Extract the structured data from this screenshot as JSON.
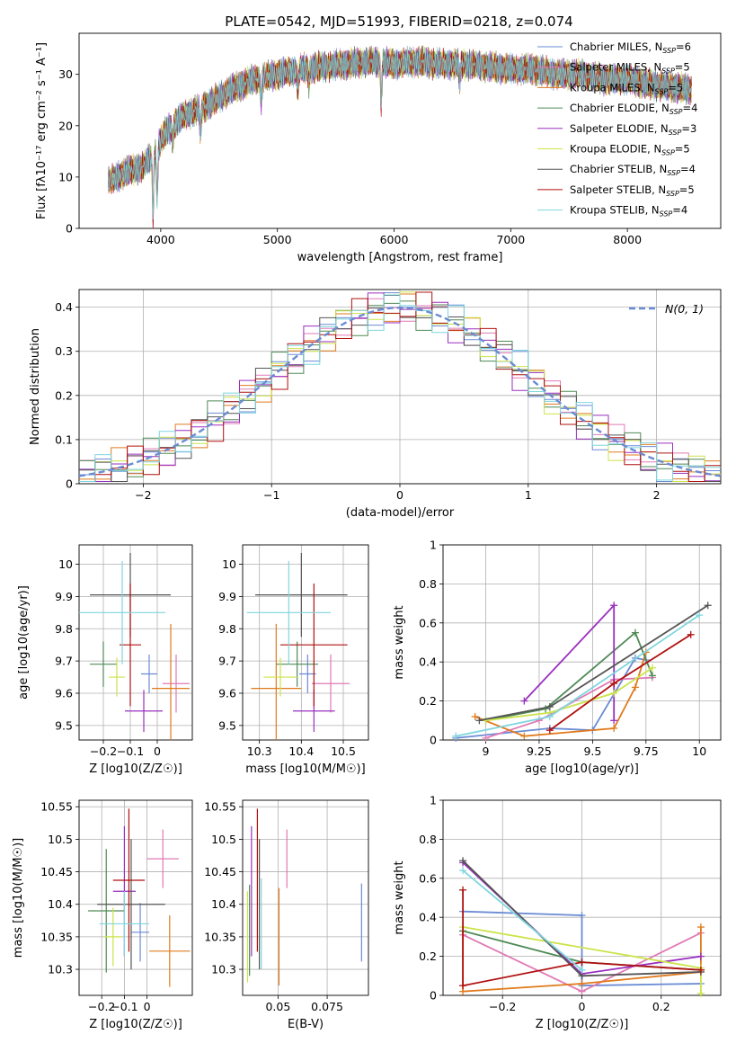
{
  "figure": {
    "title": "PLATE=0542, MJD=51993, FIBERID=0218, z=0.074"
  },
  "chart_data": [
    {
      "id": "spectrum",
      "type": "line",
      "xlabel": "wavelength [Angstrom, rest frame]",
      "ylabel": "Flux [fλ10⁻¹⁷ erg cm⁻² s⁻¹ A⁻¹]",
      "xlim": [
        3300,
        8800
      ],
      "ylim": [
        0,
        38
      ],
      "xticks": [
        4000,
        5000,
        6000,
        7000,
        8000
      ],
      "yticks": [
        0,
        10,
        20,
        30
      ],
      "grid": false,
      "legend_position": "top-right",
      "continuum": [
        [
          3550,
          9
        ],
        [
          3700,
          11
        ],
        [
          3850,
          12
        ],
        [
          3950,
          15
        ],
        [
          4050,
          19
        ],
        [
          4200,
          22
        ],
        [
          4400,
          24
        ],
        [
          4600,
          27
        ],
        [
          4800,
          29
        ],
        [
          5000,
          30
        ],
        [
          5200,
          31
        ],
        [
          5400,
          31.5
        ],
        [
          5600,
          32
        ],
        [
          5800,
          32.5
        ],
        [
          6000,
          32
        ],
        [
          6200,
          32.5
        ],
        [
          6400,
          32
        ],
        [
          6600,
          32
        ],
        [
          6800,
          31.5
        ],
        [
          7000,
          31
        ],
        [
          7200,
          31
        ],
        [
          7400,
          30
        ],
        [
          7600,
          30
        ],
        [
          7800,
          29
        ],
        [
          8000,
          29
        ],
        [
          8200,
          28
        ],
        [
          8400,
          27.5
        ],
        [
          8550,
          27
        ]
      ],
      "absorption_features": [
        [
          3934,
          0
        ],
        [
          3969,
          4
        ],
        [
          4102,
          16
        ],
        [
          4340,
          18
        ],
        [
          4861,
          24
        ],
        [
          5175,
          26
        ],
        [
          5270,
          28
        ],
        [
          5890,
          23
        ],
        [
          6563,
          28
        ]
      ],
      "series": [
        {
          "name": "Chabrier MILES, N_SSP=6",
          "color": "#6a8bd4"
        },
        {
          "name": "Salpeter MILES, N_SSP=5",
          "color": "#e07ab5"
        },
        {
          "name": "Kroupa MILES, N_SSP=5",
          "color": "#e07b1e"
        },
        {
          "name": "Chabrier ELODIE, N_SSP=4",
          "color": "#4f8a55"
        },
        {
          "name": "Salpeter ELODIE, N_SSP=3",
          "color": "#9a2fbf"
        },
        {
          "name": "Kroupa ELODIE, N_SSP=5",
          "color": "#cce34a"
        },
        {
          "name": "Chabrier STELIB, N_SSP=4",
          "color": "#555555"
        },
        {
          "name": "Salpeter STELIB, N_SSP=5",
          "color": "#b01010"
        },
        {
          "name": "Kroupa STELIB, N_SSP=4",
          "color": "#7fd6de"
        }
      ],
      "legend_labels": [
        {
          "main": "Chabrier MILES, N",
          "sub": "SSP",
          "tail": "=6"
        },
        {
          "main": "Salpeter MILES, N",
          "sub": "SSP",
          "tail": "=5"
        },
        {
          "main": "Kroupa MILES, N",
          "sub": "SSP",
          "tail": "=5"
        },
        {
          "main": "Chabrier ELODIE, N",
          "sub": "SSP",
          "tail": "=4"
        },
        {
          "main": "Salpeter ELODIE, N",
          "sub": "SSP",
          "tail": "=3"
        },
        {
          "main": "Kroupa ELODIE, N",
          "sub": "SSP",
          "tail": "=5"
        },
        {
          "main": "Chabrier STELIB, N",
          "sub": "SSP",
          "tail": "=4"
        },
        {
          "main": "Salpeter STELIB, N",
          "sub": "SSP",
          "tail": "=5"
        },
        {
          "main": "Kroupa STELIB, N",
          "sub": "SSP",
          "tail": "=4"
        }
      ]
    },
    {
      "id": "residuals",
      "type": "histogram",
      "xlabel": "(data-model)/error",
      "ylabel": "Normed distribution",
      "xlim": [
        -2.5,
        2.5
      ],
      "ylim": [
        0,
        0.44
      ],
      "xticks": [
        -2,
        -1,
        0,
        1,
        2
      ],
      "yticks": [
        0.0,
        0.1,
        0.2,
        0.3,
        0.4
      ],
      "grid": true,
      "legend_position": "top-right",
      "reference_curve": {
        "name": "N(0, 1)",
        "color": "#6a8bd4",
        "mean": 0,
        "sigma": 1
      },
      "bins": 40
    },
    {
      "id": "age_vs_Z",
      "type": "errorbar",
      "xlabel": "Z [log10(Z/Z☉)]",
      "ylabel": "age [log10(age/yr)]",
      "xlim": [
        -0.29,
        0.13
      ],
      "ylim": [
        9.455,
        10.06
      ],
      "xticks": [
        -0.2,
        -0.1,
        0.0
      ],
      "yticks": [
        9.5,
        9.6,
        9.7,
        9.8,
        9.9,
        10.0
      ],
      "grid": true,
      "points": [
        {
          "color": "#6a8bd4",
          "x": -0.03,
          "xerr": 0.03,
          "y": 9.66,
          "yerr": 0.06
        },
        {
          "color": "#e07ab5",
          "x": 0.07,
          "xerr": 0.05,
          "y": 9.63,
          "yerr": 0.09
        },
        {
          "color": "#e07b1e",
          "x": 0.05,
          "xerr": 0.07,
          "y": 9.615,
          "yerr": 0.2
        },
        {
          "color": "#4f8a55",
          "x": -0.2,
          "xerr": 0.05,
          "y": 9.69,
          "yerr": 0.07
        },
        {
          "color": "#9a2fbf",
          "x": -0.05,
          "xerr": 0.07,
          "y": 9.545,
          "yerr": 0.065
        },
        {
          "color": "#cce34a",
          "x": -0.15,
          "xerr": 0.03,
          "y": 9.65,
          "yerr": 0.06
        },
        {
          "color": "#555555",
          "x": -0.1,
          "xerr": 0.15,
          "y": 9.905,
          "yerr": 0.13
        },
        {
          "color": "#b01010",
          "x": -0.1,
          "xerr": 0.04,
          "y": 9.75,
          "yerr": 0.19
        },
        {
          "color": "#7fd6de",
          "x": -0.13,
          "xerr": 0.16,
          "y": 9.85,
          "yerr": 0.16
        }
      ]
    },
    {
      "id": "age_vs_mass",
      "type": "errorbar",
      "xlabel": "mass [log10(M/M☉)]",
      "ylabel": "",
      "xlim": [
        10.26,
        10.56
      ],
      "ylim": [
        9.455,
        10.06
      ],
      "xticks": [
        10.3,
        10.4,
        10.5
      ],
      "yticks": [
        9.5,
        9.6,
        9.7,
        9.8,
        9.9,
        10.0
      ],
      "grid": true,
      "points": [
        {
          "color": "#6a8bd4",
          "x": 10.415,
          "xerr": 0.02,
          "y": 9.66,
          "yerr": 0.06
        },
        {
          "color": "#e07ab5",
          "x": 10.47,
          "xerr": 0.045,
          "y": 9.63,
          "yerr": 0.09
        },
        {
          "color": "#e07b1e",
          "x": 10.34,
          "xerr": 0.06,
          "y": 9.615,
          "yerr": 0.2
        },
        {
          "color": "#4f8a55",
          "x": 10.39,
          "xerr": 0.05,
          "y": 9.69,
          "yerr": 0.07
        },
        {
          "color": "#9a2fbf",
          "x": 10.43,
          "xerr": 0.05,
          "y": 9.545,
          "yerr": 0.065
        },
        {
          "color": "#cce34a",
          "x": 10.35,
          "xerr": 0.04,
          "y": 9.65,
          "yerr": 0.06
        },
        {
          "color": "#555555",
          "x": 10.4,
          "xerr": 0.11,
          "y": 9.905,
          "yerr": 0.13
        },
        {
          "color": "#b01010",
          "x": 10.43,
          "xerr": 0.08,
          "y": 9.75,
          "yerr": 0.19
        },
        {
          "color": "#7fd6de",
          "x": 10.37,
          "xerr": 0.1,
          "y": 9.85,
          "yerr": 0.16
        }
      ]
    },
    {
      "id": "weight_vs_age",
      "type": "line",
      "xlabel": "age [log10(age/yr)]",
      "ylabel": "mass weight",
      "xlim": [
        8.8,
        10.1
      ],
      "ylim": [
        0,
        1
      ],
      "xticks": [
        9.0,
        9.25,
        9.5,
        9.75,
        10.0
      ],
      "yticks": [
        0.0,
        0.2,
        0.4,
        0.6,
        0.8,
        1.0
      ],
      "grid": true,
      "series": [
        {
          "color": "#6a8bd4",
          "x": [
            8.86,
            9.3,
            9.5,
            9.7,
            9.75
          ],
          "y": [
            0.01,
            0.06,
            0.05,
            0.42,
            0.41
          ]
        },
        {
          "color": "#e07ab5",
          "x": [
            9.0,
            9.25,
            9.6,
            9.78
          ],
          "y": [
            0.01,
            0.1,
            0.31,
            0.32
          ]
        },
        {
          "color": "#e07b1e",
          "x": [
            8.95,
            9.18,
            9.6,
            9.7,
            9.75
          ],
          "y": [
            0.12,
            0.02,
            0.06,
            0.27,
            0.45
          ]
        },
        {
          "color": "#4f8a55",
          "x": [
            9.0,
            9.28,
            9.7,
            9.78
          ],
          "y": [
            0.1,
            0.16,
            0.55,
            0.33
          ]
        },
        {
          "color": "#9a2fbf",
          "x": [
            9.18,
            9.6,
            9.6
          ],
          "y": [
            0.2,
            0.69,
            0.1
          ]
        },
        {
          "color": "#cce34a",
          "x": [
            9.0,
            9.3,
            9.6,
            9.78
          ],
          "y": [
            0.1,
            0.14,
            0.24,
            0.37
          ]
        },
        {
          "color": "#555555",
          "x": [
            8.97,
            9.3,
            10.04
          ],
          "y": [
            0.1,
            0.17,
            0.69
          ]
        },
        {
          "color": "#b01010",
          "x": [
            9.3,
            9.6,
            9.96
          ],
          "y": [
            0.05,
            0.29,
            0.54
          ]
        },
        {
          "color": "#7fd6de",
          "x": [
            8.86,
            9.3,
            10.0
          ],
          "y": [
            0.02,
            0.12,
            0.64
          ]
        }
      ]
    },
    {
      "id": "mass_vs_Z",
      "type": "errorbar",
      "xlabel": "Z [log10(Z/Z☉)]",
      "ylabel": "mass [log10(M/M☉)]",
      "xlim": [
        -0.3,
        0.2
      ],
      "ylim": [
        10.26,
        10.56
      ],
      "xticks": [
        -0.2,
        -0.1,
        0.0
      ],
      "yticks": [
        10.3,
        10.35,
        10.4,
        10.45,
        10.5,
        10.55
      ],
      "grid": true,
      "points": [
        {
          "color": "#6a8bd4",
          "x": -0.03,
          "xerr": 0.04,
          "y": 10.357,
          "yerr": 0.045
        },
        {
          "color": "#e07ab5",
          "x": 0.07,
          "xerr": 0.07,
          "y": 10.47,
          "yerr": 0.045
        },
        {
          "color": "#e07b1e",
          "x": 0.1,
          "xerr": 0.09,
          "y": 10.328,
          "yerr": 0.055
        },
        {
          "color": "#4f8a55",
          "x": -0.18,
          "xerr": 0.08,
          "y": 10.39,
          "yerr": 0.095
        },
        {
          "color": "#9a2fbf",
          "x": -0.1,
          "xerr": 0.05,
          "y": 10.42,
          "yerr": 0.1
        },
        {
          "color": "#cce34a",
          "x": -0.15,
          "xerr": 0.04,
          "y": 10.35,
          "yerr": 0.045
        },
        {
          "color": "#555555",
          "x": -0.07,
          "xerr": 0.15,
          "y": 10.4,
          "yerr": 0.1
        },
        {
          "color": "#b01010",
          "x": -0.08,
          "xerr": 0.07,
          "y": 10.437,
          "yerr": 0.11
        },
        {
          "color": "#7fd6de",
          "x": -0.1,
          "xerr": 0.11,
          "y": 10.37,
          "yerr": 0.05
        }
      ]
    },
    {
      "id": "mass_vs_EBV",
      "type": "errorbar",
      "xlabel": "E(B-V)",
      "ylabel": "",
      "xlim": [
        0.032,
        0.096
      ],
      "ylim": [
        10.26,
        10.56
      ],
      "xticks": [
        0.05,
        0.075
      ],
      "yticks": [
        10.3,
        10.35,
        10.4,
        10.45,
        10.5,
        10.55
      ],
      "grid": true,
      "points": [
        {
          "color": "#6a8bd4",
          "x": 0.0925,
          "xerr": 0.0,
          "y": 10.372,
          "yerr": 0.06
        },
        {
          "color": "#e07ab5",
          "x": 0.0545,
          "xerr": 0.0,
          "y": 10.47,
          "yerr": 0.045
        },
        {
          "color": "#e07b1e",
          "x": 0.0505,
          "xerr": 0.0,
          "y": 10.35,
          "yerr": 0.075
        },
        {
          "color": "#4f8a55",
          "x": 0.0355,
          "xerr": 0.0,
          "y": 10.36,
          "yerr": 0.07
        },
        {
          "color": "#9a2fbf",
          "x": 0.0365,
          "xerr": 0.0,
          "y": 10.42,
          "yerr": 0.1
        },
        {
          "color": "#cce34a",
          "x": 0.0345,
          "xerr": 0.0,
          "y": 10.35,
          "yerr": 0.07
        },
        {
          "color": "#555555",
          "x": 0.0405,
          "xerr": 0.0,
          "y": 10.4,
          "yerr": 0.1
        },
        {
          "color": "#b01010",
          "x": 0.0395,
          "xerr": 0.0,
          "y": 10.437,
          "yerr": 0.11
        },
        {
          "color": "#7fd6de",
          "x": 0.0415,
          "xerr": 0.0,
          "y": 10.37,
          "yerr": 0.07
        }
      ]
    },
    {
      "id": "weight_vs_Z",
      "type": "line",
      "xlabel": "Z [log10(Z/Z☉)]",
      "ylabel": "mass weight",
      "xlim": [
        -0.35,
        0.35
      ],
      "ylim": [
        0,
        1
      ],
      "xticks": [
        -0.2,
        0.0,
        0.2
      ],
      "yticks": [
        0.0,
        0.2,
        0.4,
        0.6,
        0.8,
        1.0
      ],
      "grid": true,
      "series": [
        {
          "color": "#6a8bd4",
          "x": [
            -0.3,
            0.0,
            0.0,
            0.3
          ],
          "y": [
            0.43,
            0.41,
            0.05,
            0.06
          ]
        },
        {
          "color": "#e07ab5",
          "x": [
            -0.3,
            0.0,
            0.3
          ],
          "y": [
            0.31,
            0.02,
            0.32
          ]
        },
        {
          "color": "#e07b1e",
          "x": [
            -0.3,
            -0.3,
            0.0,
            0.3,
            0.3
          ],
          "y": [
            0.33,
            0.02,
            0.06,
            0.12,
            0.35
          ]
        },
        {
          "color": "#4f8a55",
          "x": [
            -0.3,
            0.0,
            0.3
          ],
          "y": [
            0.33,
            0.17,
            0.13
          ]
        },
        {
          "color": "#9a2fbf",
          "x": [
            -0.3,
            0.0,
            0.3
          ],
          "y": [
            0.68,
            0.11,
            0.2
          ]
        },
        {
          "color": "#cce34a",
          "x": [
            -0.3,
            0.3,
            0.3
          ],
          "y": [
            0.35,
            0.14,
            0.01
          ]
        },
        {
          "color": "#555555",
          "x": [
            -0.3,
            0.0,
            0.3
          ],
          "y": [
            0.69,
            0.1,
            0.12
          ]
        },
        {
          "color": "#b01010",
          "x": [
            -0.3,
            -0.3,
            0.0,
            0.3
          ],
          "y": [
            0.54,
            0.05,
            0.17,
            0.13
          ]
        },
        {
          "color": "#7fd6de",
          "x": [
            -0.3,
            0.0
          ],
          "y": [
            0.64,
            0.13
          ]
        }
      ]
    }
  ]
}
